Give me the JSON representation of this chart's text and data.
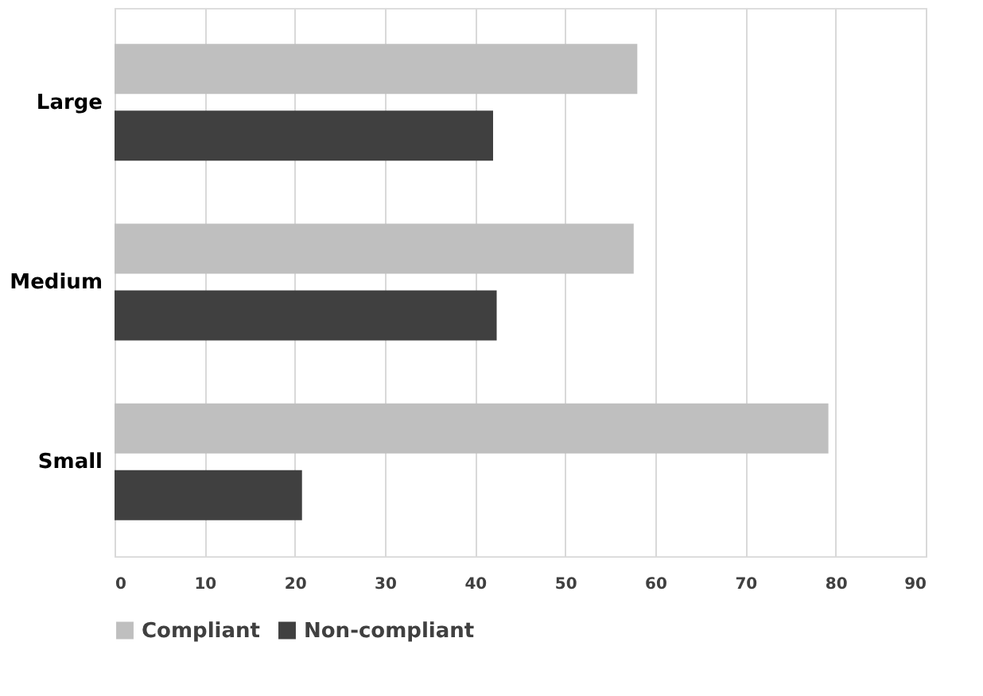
{
  "chart_data": {
    "type": "bar",
    "orientation": "horizontal",
    "categories": [
      "Large",
      "Medium",
      "Small"
    ],
    "series": [
      {
        "name": "Compliant",
        "color": "#bfbfbf",
        "values": [
          58,
          57.6,
          79.2
        ]
      },
      {
        "name": "Non-compliant",
        "color": "#404040",
        "values": [
          42,
          42.4,
          20.8
        ]
      }
    ],
    "xlim": [
      0,
      90
    ],
    "xticks": [
      0,
      10,
      20,
      30,
      40,
      50,
      60,
      70,
      80,
      90
    ],
    "grid": "x",
    "legend": "bottom"
  }
}
